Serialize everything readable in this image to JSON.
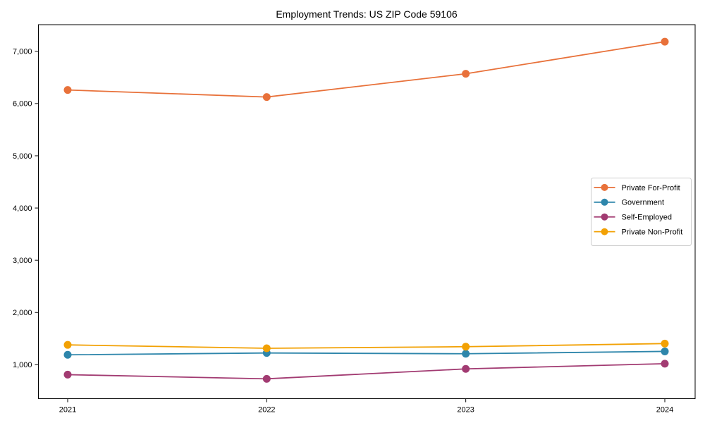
{
  "chart_data": {
    "type": "line",
    "title": "Employment Trends: US ZIP Code 59106",
    "xlabel": "",
    "ylabel": "",
    "categories": [
      "2021",
      "2022",
      "2023",
      "2024"
    ],
    "series": [
      {
        "name": "Private For-Profit",
        "color": "#E8713A",
        "values": [
          6260,
          6125,
          6570,
          7185
        ]
      },
      {
        "name": "Government",
        "color": "#2E86AB",
        "values": [
          1190,
          1225,
          1210,
          1255
        ]
      },
      {
        "name": "Self-Employed",
        "color": "#A23B72",
        "values": [
          810,
          730,
          920,
          1020
        ]
      },
      {
        "name": "Private Non-Profit",
        "color": "#F2A104",
        "values": [
          1380,
          1315,
          1345,
          1405
        ]
      }
    ],
    "ylim": [
      350,
      7510
    ],
    "yticks": [
      1000,
      2000,
      3000,
      4000,
      5000,
      6000,
      7000
    ],
    "ytick_labels": [
      "1,000",
      "2,000",
      "3,000",
      "4,000",
      "5,000",
      "6,000",
      "7,000"
    ],
    "grid": false,
    "legend_position": "center right",
    "marker": "circle",
    "axis_color": "#000000",
    "legend_border_color": "#cccccc"
  }
}
